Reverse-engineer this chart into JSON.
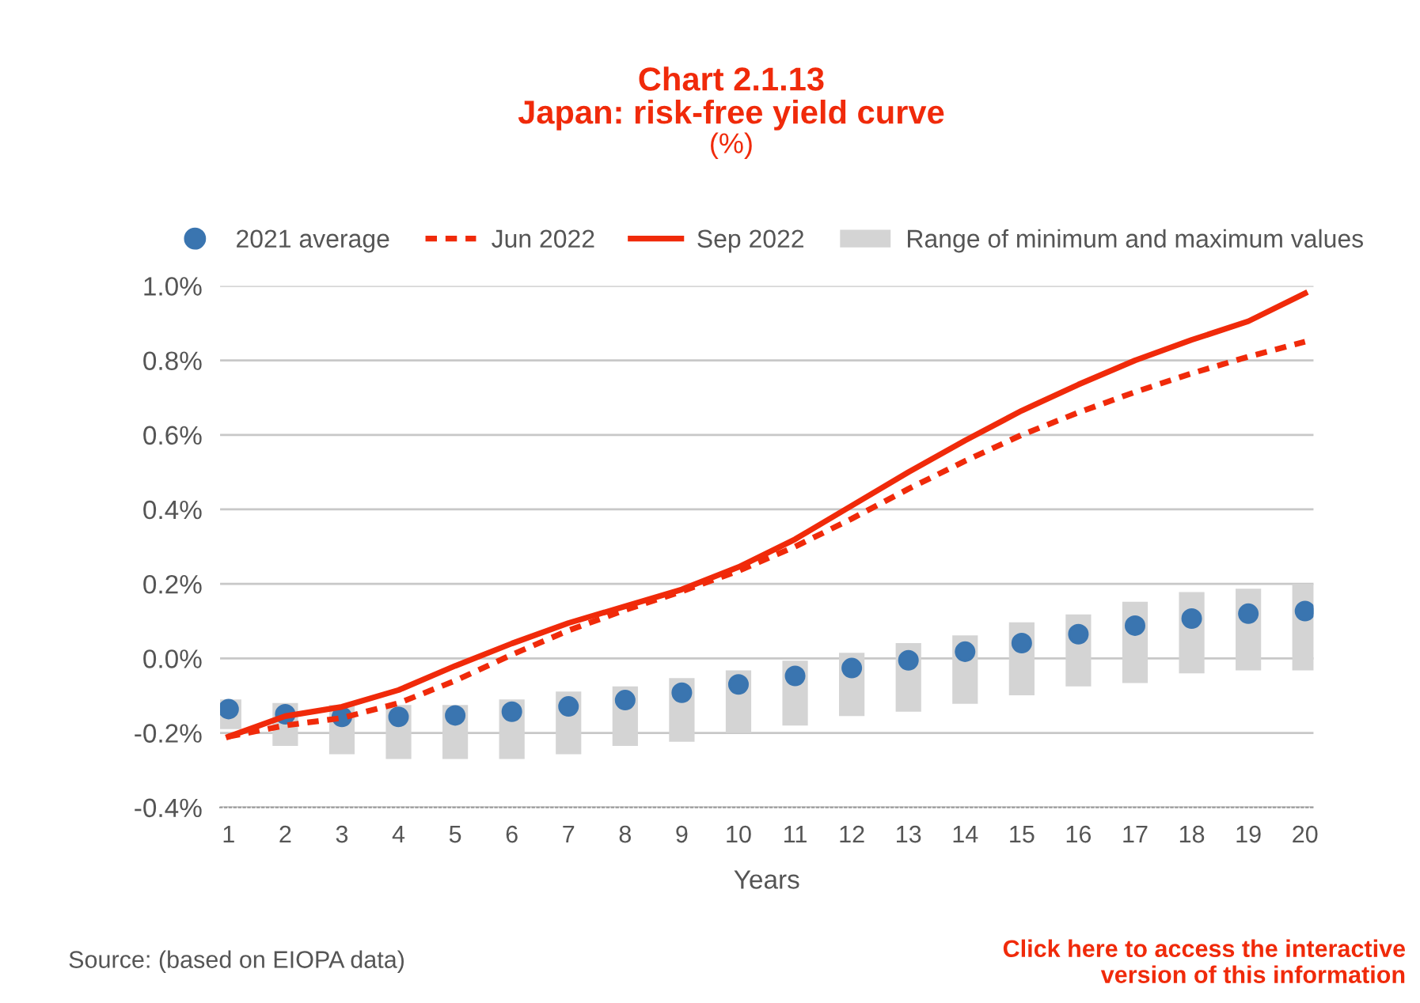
{
  "chart_data": {
    "type": "bar",
    "title": "Chart 2.1.13\nJapan: risk-free yield curve",
    "subtitle": "(%)",
    "xlabel": "Years",
    "categories": [
      "1",
      "2",
      "3",
      "4",
      "5",
      "6",
      "7",
      "8",
      "9",
      "10",
      "11",
      "12",
      "13",
      "14",
      "15",
      "16",
      "17",
      "18",
      "19",
      "20"
    ],
    "series": [
      {
        "name": "2021 average",
        "type": "scatter",
        "color": "#3a75b0",
        "values": [
          -0.136,
          -0.15,
          -0.157,
          -0.157,
          -0.153,
          -0.143,
          -0.129,
          -0.112,
          -0.092,
          -0.07,
          -0.047,
          -0.026,
          -0.005,
          0.018,
          0.041,
          0.065,
          0.088,
          0.107,
          0.12,
          0.127
        ]
      },
      {
        "name": "Jun 2022",
        "type": "line",
        "line_style": "dashed",
        "color": "#f02a0a",
        "values": [
          -0.21,
          -0.18,
          -0.16,
          -0.12,
          -0.06,
          0.01,
          0.075,
          0.13,
          0.18,
          0.235,
          0.3,
          0.375,
          0.455,
          0.53,
          0.6,
          0.66,
          0.715,
          0.765,
          0.81,
          0.85
        ]
      },
      {
        "name": "Sep 2022",
        "type": "line",
        "line_style": "solid",
        "color": "#f02a0a",
        "values": [
          -0.21,
          -0.155,
          -0.13,
          -0.085,
          -0.02,
          0.04,
          0.095,
          0.14,
          0.185,
          0.245,
          0.32,
          0.41,
          0.5,
          0.585,
          0.665,
          0.735,
          0.8,
          0.855,
          0.905,
          0.98
        ]
      },
      {
        "name": "Range of minimum and maximum values",
        "color": "#d4d4d4",
        "base": [
          -0.19,
          -0.235,
          -0.257,
          -0.27,
          -0.27,
          -0.27,
          -0.257,
          -0.235,
          -0.224,
          -0.2,
          -0.18,
          -0.155,
          -0.143,
          -0.122,
          -0.099,
          -0.075,
          -0.066,
          -0.04,
          -0.032,
          -0.032
        ],
        "values": [
          0.08,
          0.115,
          0.132,
          0.145,
          0.145,
          0.16,
          0.168,
          0.16,
          0.171,
          0.168,
          0.174,
          0.17,
          0.184,
          0.184,
          0.196,
          0.193,
          0.218,
          0.218,
          0.219,
          0.232
        ]
      }
    ],
    "ylim": [
      -0.4,
      1.0
    ],
    "yticks": [
      {
        "value": -0.4,
        "label": "-0.4%"
      },
      {
        "value": -0.2,
        "label": "-0.2%"
      },
      {
        "value": 0.0,
        "label": "0.0%"
      },
      {
        "value": 0.2,
        "label": "0.2%"
      },
      {
        "value": 0.4,
        "label": "0.4%"
      },
      {
        "value": 0.6,
        "label": "0.6%"
      },
      {
        "value": 0.8,
        "label": "0.8%"
      },
      {
        "value": 1.0,
        "label": "1.0%"
      }
    ],
    "grid": "y",
    "legend": "top",
    "annotations": [
      "Source: (based on EIOPA data)",
      "Click here to access the interactive\nversion of this information"
    ]
  }
}
